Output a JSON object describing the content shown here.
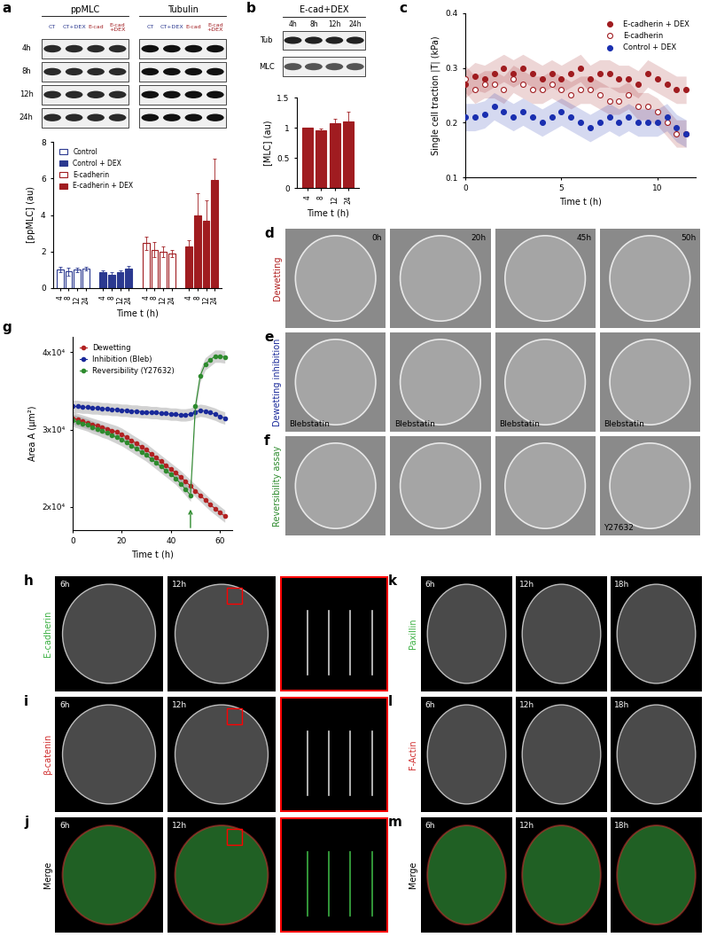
{
  "panel_labels": [
    "a",
    "b",
    "c",
    "d",
    "e",
    "f",
    "g",
    "h",
    "i",
    "j",
    "k",
    "l",
    "m"
  ],
  "blots": [
    {
      "panel": "a",
      "groups": [
        "ppMLC",
        "Tubulin"
      ],
      "lanes": [
        {
          "text": "CT",
          "color": "#2b3990"
        },
        {
          "text": "CT+DEX",
          "color": "#2b3990"
        },
        {
          "text": "E-cad",
          "color": "#a01c20"
        },
        {
          "text": "E-cad\n+DEX",
          "color": "#a01c20"
        }
      ],
      "rows": [
        "4h",
        "8h",
        "12h",
        "24h"
      ]
    },
    {
      "panel": "b",
      "groups": [
        "E-cad+DEX"
      ],
      "lanes": [
        {
          "text": "4h",
          "color": "#000000"
        },
        {
          "text": "8h",
          "color": "#000000"
        },
        {
          "text": "12h",
          "color": "#000000"
        },
        {
          "text": "24h",
          "color": "#000000"
        }
      ],
      "rows": [
        "Tub",
        "MLC"
      ]
    }
  ],
  "chart_data": [
    {
      "panel": "a",
      "type": "bar",
      "categories": [
        "4",
        "8",
        "12",
        "24"
      ],
      "x_label": "Time t (h)",
      "y_label": "[ppMLC] (au)",
      "ylim": [
        0,
        8
      ],
      "yticks": [
        0,
        2,
        4,
        6,
        8
      ],
      "legend": "upper left",
      "series": [
        {
          "name": "Control",
          "color": "#2b3990",
          "marker": "open",
          "values": [
            1.0,
            0.9,
            1.0,
            1.05
          ],
          "errors": [
            0.15,
            0.2,
            0.12,
            0.1
          ]
        },
        {
          "name": "Control + DEX",
          "color": "#2b3990",
          "marker": "filled",
          "values": [
            0.85,
            0.75,
            0.85,
            1.05
          ],
          "errors": [
            0.1,
            0.1,
            0.1,
            0.15
          ]
        },
        {
          "name": "E-cadherin",
          "color": "#a01c20",
          "marker": "open",
          "values": [
            2.45,
            2.1,
            2.0,
            1.9
          ],
          "errors": [
            0.35,
            0.4,
            0.3,
            0.2
          ]
        },
        {
          "name": "E-cadherin + DEX",
          "color": "#a01c20",
          "marker": "filled",
          "values": [
            2.3,
            4.0,
            3.7,
            5.9
          ],
          "errors": [
            0.3,
            1.2,
            1.1,
            1.2
          ]
        }
      ]
    },
    {
      "panel": "b",
      "type": "bar",
      "categories": [
        "4",
        "8",
        "12",
        "24"
      ],
      "x_label": "Time t (h)",
      "y_label": "[MLC] (au)",
      "ylim": [
        0,
        1.5
      ],
      "yticks": [
        0,
        0.5,
        1,
        1.5
      ],
      "series": [
        {
          "name": "E-cad+DEX",
          "color": "#a01c20",
          "marker": "filled",
          "values": [
            1.0,
            0.96,
            1.08,
            1.11
          ],
          "errors": [
            0.0,
            0.03,
            0.07,
            0.15
          ]
        }
      ]
    },
    {
      "panel": "c",
      "type": "scatter",
      "x_label": "Time t (h)",
      "y_label": "Single cell traction |T| (kPa)",
      "xlim": [
        0,
        12
      ],
      "xticks": [
        0,
        5,
        10
      ],
      "ylim": [
        0.1,
        0.4
      ],
      "yticks": [
        0.1,
        0.2,
        0.3,
        0.4
      ],
      "legend": "upper right",
      "x": [
        0,
        0.5,
        1,
        1.5,
        2,
        2.5,
        3,
        3.5,
        4,
        4.5,
        5,
        5.5,
        6,
        6.5,
        7,
        7.5,
        8,
        8.5,
        9,
        9.5,
        10,
        10.5,
        11,
        11.5
      ],
      "series": [
        {
          "name": "E-cadherin + DEX",
          "color": "#a01c20",
          "marker": "filled",
          "error": 0.025,
          "values": [
            0.27,
            0.285,
            0.28,
            0.29,
            0.3,
            0.29,
            0.3,
            0.29,
            0.28,
            0.29,
            0.28,
            0.29,
            0.3,
            0.28,
            0.29,
            0.29,
            0.28,
            0.28,
            0.27,
            0.29,
            0.28,
            0.27,
            0.26,
            0.26
          ]
        },
        {
          "name": "E-cadherin",
          "color": "#a01c20",
          "marker": "open",
          "error": 0.025,
          "values": [
            0.28,
            0.26,
            0.27,
            0.27,
            0.26,
            0.28,
            0.27,
            0.26,
            0.26,
            0.27,
            0.26,
            0.25,
            0.26,
            0.26,
            0.25,
            0.24,
            0.24,
            0.25,
            0.23,
            0.23,
            0.22,
            0.2,
            0.18,
            0.18
          ]
        },
        {
          "name": "Control + DEX",
          "color": "#1a2fb0",
          "marker": "filled",
          "error": 0.025,
          "values": [
            0.21,
            0.21,
            0.215,
            0.23,
            0.22,
            0.21,
            0.22,
            0.21,
            0.2,
            0.21,
            0.22,
            0.21,
            0.2,
            0.19,
            0.2,
            0.21,
            0.2,
            0.21,
            0.2,
            0.2,
            0.2,
            0.21,
            0.19,
            0.18
          ]
        }
      ]
    },
    {
      "panel": "g",
      "type": "line",
      "x_label": "Time t (h)",
      "y_label": "Area A (μm²)",
      "xlim": [
        0,
        65
      ],
      "xticks": [
        0,
        20,
        40,
        60
      ],
      "ylim": [
        17000,
        42000
      ],
      "yticks": [
        {
          "value": 20000,
          "label": "2x10⁴"
        },
        {
          "value": 30000,
          "label": "3x10⁴"
        },
        {
          "value": 40000,
          "label": "4x10⁴"
        }
      ],
      "legend": "upper left",
      "x": [
        0,
        2,
        4,
        6,
        8,
        10,
        12,
        14,
        16,
        18,
        20,
        22,
        24,
        26,
        28,
        30,
        32,
        34,
        36,
        38,
        40,
        42,
        44,
        46,
        48,
        50,
        52,
        54,
        56,
        58,
        60,
        62
      ],
      "series": [
        {
          "name": "Dewetting",
          "color": "#b22222",
          "error": 800,
          "values": [
            31500,
            31300,
            31100,
            30900,
            30700,
            30500,
            30300,
            30100,
            29900,
            29700,
            29400,
            29000,
            28600,
            28200,
            27800,
            27400,
            26900,
            26400,
            25900,
            25400,
            24900,
            24400,
            23900,
            23300,
            22700,
            22100,
            21500,
            20900,
            20300,
            19800,
            19300,
            18800
          ]
        },
        {
          "name": "Inhibition (Bleb)",
          "color": "#1a2a9a",
          "error": 800,
          "values": [
            33000,
            33000,
            32900,
            32900,
            32800,
            32800,
            32700,
            32700,
            32600,
            32600,
            32500,
            32500,
            32400,
            32400,
            32300,
            32300,
            32200,
            32200,
            32100,
            32100,
            32000,
            32000,
            31900,
            31900,
            32000,
            32300,
            32500,
            32400,
            32200,
            32000,
            31700,
            31500
          ]
        },
        {
          "name": "Reversibility (Y27632)",
          "color": "#2e8b2e",
          "error": 800,
          "drug_added_at": 48,
          "values": [
            31200,
            31000,
            30800,
            30600,
            30300,
            30100,
            29800,
            29600,
            29300,
            29000,
            28700,
            28300,
            27900,
            27500,
            27100,
            26700,
            26200,
            25700,
            25200,
            24700,
            24200,
            23700,
            23000,
            22300,
            21500,
            33000,
            37000,
            38500,
            39000,
            39500,
            39500,
            39400
          ]
        }
      ]
    }
  ],
  "timelapse": {
    "time_labels": [
      "0h",
      "20h",
      "45h",
      "50h"
    ],
    "rows": [
      {
        "panel": "d",
        "row_label": "Dewetting",
        "color": "#b22222",
        "notes": [
          null,
          null,
          null,
          null
        ]
      },
      {
        "panel": "e",
        "row_label": "Dewetting inhibition",
        "color": "#1a2a9a",
        "notes": [
          "Blebstatin",
          "Blebstatin",
          "Blebstatin",
          "Blebstatin"
        ]
      },
      {
        "panel": "f",
        "row_label": "Reversibility assay",
        "color": "#2e8b2e",
        "notes": [
          null,
          null,
          null,
          "Y27632"
        ]
      }
    ]
  },
  "stainings": [
    {
      "time_labels": [
        "6h",
        "12h"
      ],
      "zoom": true,
      "rows": [
        {
          "panel": "h",
          "row_label": "E-cadherin",
          "color": "#3cb043"
        },
        {
          "panel": "i",
          "row_label": "β-catenin",
          "color": "#d03030"
        },
        {
          "panel": "j",
          "row_label": "Merge",
          "color": "#000000"
        }
      ]
    },
    {
      "time_labels": [
        "6h",
        "12h",
        "18h"
      ],
      "zoom": false,
      "rows": [
        {
          "panel": "k",
          "row_label": "Paxillin",
          "color": "#3cb043"
        },
        {
          "panel": "l",
          "row_label": "F-Actin",
          "color": "#d03030"
        },
        {
          "panel": "m",
          "row_label": "Merge",
          "color": "#000000"
        }
      ]
    }
  ]
}
